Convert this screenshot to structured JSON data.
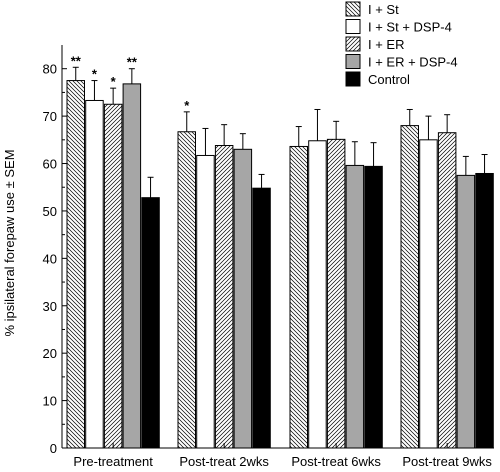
{
  "chart_data": {
    "type": "bar",
    "title": "",
    "xlabel": "",
    "ylabel": "% ipsilateral forepaw use ± SEM",
    "ylim": [
      0,
      85
    ],
    "yticks": [
      0,
      10,
      20,
      30,
      40,
      50,
      60,
      70,
      80
    ],
    "grid": false,
    "legend_position": "top-right",
    "categories": [
      "Pre-treatment",
      "Post-treat 2wks",
      "Post-treat 6wks",
      "Post-treat 9wks"
    ],
    "series": [
      {
        "name": "I + St",
        "pattern": "hatch-back",
        "color": "#ffffff",
        "values": [
          77.5,
          66.7,
          63.6,
          68.0
        ],
        "errors": [
          2.8,
          4.2,
          4.2,
          3.4
        ],
        "annotations": [
          "**",
          "*",
          "",
          ""
        ]
      },
      {
        "name": "I + St + DSP-4",
        "pattern": "solid",
        "color": "#ffffff",
        "values": [
          73.3,
          61.7,
          64.8,
          65.0
        ],
        "errors": [
          4.2,
          5.7,
          6.6,
          5.0
        ],
        "annotations": [
          "*",
          "",
          "",
          ""
        ]
      },
      {
        "name": "I + ER",
        "pattern": "hatch-forward",
        "color": "#ffffff",
        "values": [
          72.5,
          63.8,
          65.1,
          66.5
        ],
        "errors": [
          3.4,
          4.4,
          3.8,
          3.8
        ],
        "annotations": [
          "*",
          "",
          "",
          ""
        ]
      },
      {
        "name": "I + ER + DSP-4",
        "pattern": "solid",
        "color": "#a6a6a6",
        "values": [
          76.8,
          63.0,
          59.6,
          57.5
        ],
        "errors": [
          3.2,
          3.3,
          5.0,
          4.0
        ],
        "annotations": [
          "**",
          "",
          "",
          ""
        ]
      },
      {
        "name": "Control",
        "pattern": "solid",
        "color": "#000000",
        "values": [
          52.8,
          54.8,
          59.4,
          57.9
        ],
        "errors": [
          4.3,
          2.9,
          5.0,
          4.0
        ],
        "annotations": [
          "",
          "",
          "",
          ""
        ]
      }
    ]
  }
}
